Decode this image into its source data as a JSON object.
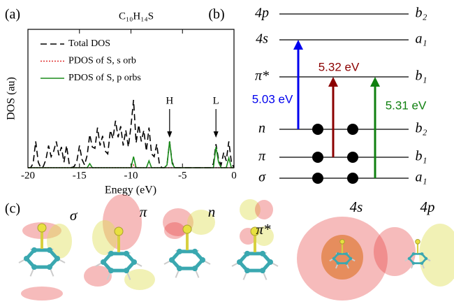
{
  "panel_labels": [
    "(a)",
    "(b)",
    "(c)"
  ],
  "chart_data": {
    "type": "line",
    "title": "C₁₀H₁₄S",
    "x_label": "Enegy (eV)",
    "y_label": "DOS (au)",
    "xlim": [
      -20,
      0
    ],
    "ylim": [
      0,
      10
    ],
    "xticks": [
      -20,
      -15,
      -10,
      -5,
      0
    ],
    "legend": "upper right",
    "x": [
      -20,
      -19.75,
      -19.5,
      -19.25,
      -19,
      -18.75,
      -18.5,
      -18.25,
      -18,
      -17.75,
      -17.5,
      -17.25,
      -17,
      -16.75,
      -16.5,
      -16.25,
      -16,
      -15.75,
      -15.5,
      -15.25,
      -15,
      -14.75,
      -14.5,
      -14.25,
      -14,
      -13.75,
      -13.5,
      -13.25,
      -13,
      -12.75,
      -12.5,
      -12.25,
      -12,
      -11.75,
      -11.5,
      -11.25,
      -11,
      -10.75,
      -10.5,
      -10.25,
      -10,
      -9.75,
      -9.5,
      -9.25,
      -9,
      -8.75,
      -8.5,
      -8.25,
      -8,
      -7.75,
      -7.5,
      -7.25,
      -7,
      -6.75,
      -6.5,
      -6.25,
      -6,
      -5.75,
      -5.5,
      -5.25,
      -5,
      -4.75,
      -4.5,
      -4.25,
      -4,
      -3.75,
      -3.5,
      -3.25,
      -3,
      -2.75,
      -2.5,
      -2.25,
      -2,
      -1.75,
      -1.5,
      -1.25,
      -1,
      -0.75,
      -0.5,
      -0.25,
      0
    ],
    "series": [
      {
        "name": "Total DOS",
        "color": "#000000",
        "style": "dashed",
        "values": [
          0,
          0,
          0.3,
          1.9,
          0.4,
          0,
          0.1,
          0.6,
          1.6,
          0.8,
          1.2,
          1.9,
          0.9,
          1.5,
          0.4,
          1.6,
          0.3,
          0,
          0.1,
          0.5,
          1.6,
          0.6,
          0.2,
          0.9,
          2.4,
          1.5,
          1.4,
          2.9,
          1.6,
          2.3,
          1.2,
          1.0,
          2.7,
          2.1,
          3.4,
          2.2,
          3.0,
          1.6,
          2.7,
          1.5,
          3.0,
          4.9,
          1.8,
          3.1,
          1.9,
          2.7,
          1.2,
          2.9,
          1.0,
          0.8,
          1.7,
          0.3,
          0,
          0,
          0.2,
          1.9,
          0.4,
          0,
          0,
          0,
          0,
          0,
          0,
          0,
          0,
          0,
          0,
          0,
          0,
          0,
          0,
          0,
          0.3,
          1.7,
          0.6,
          0.2,
          1.1,
          0.5,
          1.9,
          0.4,
          0
        ]
      },
      {
        "name": "PDOS of S, s orb",
        "color": "#e03030",
        "style": "dotted",
        "values": [
          0,
          0,
          0,
          0,
          0,
          0,
          0,
          0,
          0,
          0,
          0,
          0,
          0,
          0,
          0,
          0,
          0,
          0,
          0,
          0,
          0,
          0,
          0,
          0,
          0,
          0,
          0,
          0,
          0,
          0,
          0,
          0,
          0,
          0,
          0,
          0,
          0,
          0,
          0,
          0,
          0,
          0.2,
          0,
          0,
          0,
          0,
          0,
          0,
          0,
          0,
          0,
          0,
          0,
          0,
          0,
          0,
          0,
          0,
          0,
          0,
          0,
          0,
          0,
          0,
          0,
          0,
          0,
          0,
          0,
          0,
          0,
          0,
          0,
          0,
          0,
          0,
          0,
          0,
          0,
          0,
          0
        ]
      },
      {
        "name": "PDOS of S, p orbs",
        "color": "#1a8c1a",
        "style": "solid",
        "values": [
          0,
          0,
          0,
          0,
          0,
          0,
          0,
          0,
          0,
          0,
          0,
          0,
          0,
          0,
          0,
          0,
          0,
          0,
          0,
          0,
          0,
          0,
          0,
          0,
          0.3,
          0,
          0,
          0,
          0,
          0,
          0,
          0,
          0,
          0,
          0,
          0,
          0,
          0,
          0,
          0,
          0,
          0.8,
          0,
          0,
          0,
          0,
          0,
          0.5,
          0,
          0,
          0,
          0,
          0,
          0,
          0.2,
          1.9,
          0.3,
          0,
          0,
          0,
          0,
          0,
          0,
          0,
          0,
          0,
          0,
          0,
          0,
          0,
          0,
          0,
          0,
          1.5,
          0.4,
          0,
          0,
          0,
          0.7,
          0,
          0
        ]
      }
    ],
    "annotations": [
      {
        "text": "H",
        "x": -6.25
      },
      {
        "text": "L",
        "x": -1.75
      }
    ]
  },
  "diagram": {
    "levels": [
      {
        "label": "4p",
        "symmetry": "b₂"
      },
      {
        "label": "4s",
        "symmetry": "a₁"
      },
      {
        "label": "π*",
        "symmetry": "b₁"
      },
      {
        "label": "n",
        "symmetry": "b₂"
      },
      {
        "label": "π",
        "symmetry": "b₁"
      },
      {
        "label": "σ",
        "symmetry": "a₁"
      }
    ],
    "transitions": [
      {
        "label": "5.03 eV",
        "color": "#0000ee"
      },
      {
        "label": "5.32 eV",
        "color": "#8b0000"
      },
      {
        "label": "5.31 eV",
        "color": "#108010"
      }
    ]
  },
  "orbitals": [
    "σ",
    "π",
    "n",
    "π*",
    "4s",
    "4p"
  ]
}
